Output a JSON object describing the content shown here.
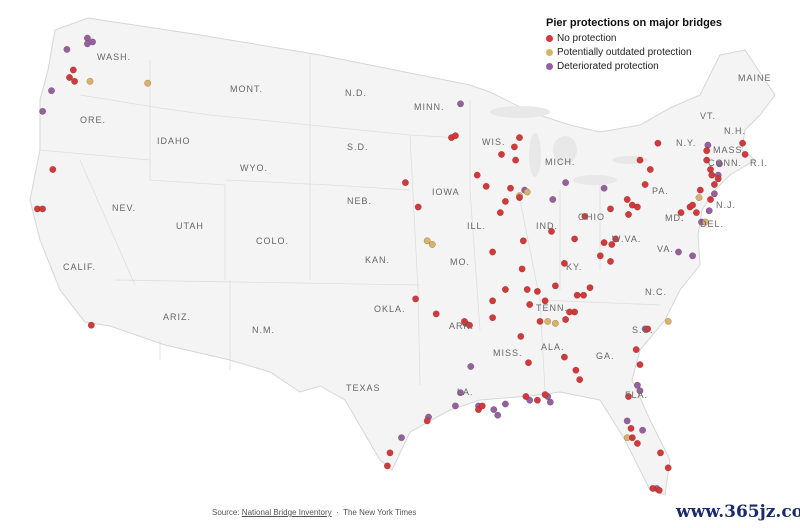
{
  "legend": {
    "title": "Pier protections on major bridges",
    "items": [
      {
        "key": "none",
        "label": "No protection",
        "color": "#d03a3a"
      },
      {
        "key": "outdated",
        "label": "Potentially outdated protection",
        "color": "#d7b26a"
      },
      {
        "key": "deteriorated",
        "label": "Deteriorated protection",
        "color": "#93629e"
      }
    ]
  },
  "states": [
    "WASH.",
    "MONT.",
    "N.D.",
    "MINN.",
    "MAINE",
    "ORE.",
    "IDAHO",
    "S.D.",
    "WIS.",
    "MICH.",
    "N.Y.",
    "VT.",
    "N.H.",
    "MASS.",
    "CONN.",
    "R.I.",
    "WYO.",
    "IOWA",
    "NEB.",
    "PA.",
    "NEV.",
    "UTAH",
    "COLO.",
    "ILL.",
    "IND.",
    "OHIO",
    "W.VA.",
    "MD.",
    "DEL.",
    "N.J.",
    "CALIF.",
    "KAN.",
    "MO.",
    "KY.",
    "VA.",
    "N.C.",
    "OKLA.",
    "TENN.",
    "ARIZ.",
    "N.M.",
    "ARK.",
    "S.C.",
    "MISS.",
    "ALA.",
    "GA.",
    "TEXAS",
    "LA.",
    "FLA."
  ],
  "source": {
    "prefix": "Source: ",
    "link": "National Bridge Inventory",
    "separator": "·",
    "credit": "The New York Times"
  },
  "watermark": "www.365jz.com",
  "map_data": {
    "projection_note": "approximate lon/lat",
    "points": {
      "deteriorated": [
        [
          -120.3,
          49.1
        ],
        [
          -119.9,
          48.9
        ],
        [
          -120.3,
          48.8
        ],
        [
          -121.9,
          48.5
        ],
        [
          -123.1,
          46.3
        ],
        [
          -123.8,
          45.2
        ],
        [
          -91.2,
          45.6
        ],
        [
          -80.0,
          41.1
        ],
        [
          -83.0,
          41.4
        ],
        [
          -84.0,
          40.5
        ],
        [
          -86.2,
          41.0
        ],
        [
          -71.9,
          43.4
        ],
        [
          -71.0,
          42.4
        ],
        [
          -71.1,
          41.8
        ],
        [
          -71.4,
          40.8
        ],
        [
          -71.8,
          39.9
        ],
        [
          -72.4,
          39.3
        ],
        [
          -73.1,
          37.5
        ],
        [
          -74.2,
          37.7
        ],
        [
          -90.4,
          31.6
        ],
        [
          -91.2,
          30.2
        ],
        [
          -76.8,
          33.6
        ],
        [
          -77.4,
          30.6
        ],
        [
          -77.2,
          30.3
        ],
        [
          -78.2,
          28.7
        ],
        [
          -77.0,
          28.2
        ],
        [
          -75.9,
          25.1
        ],
        [
          -93.7,
          28.9
        ],
        [
          -91.6,
          29.5
        ],
        [
          -89.8,
          29.5
        ],
        [
          -88.6,
          29.3
        ],
        [
          -88.3,
          29.0
        ],
        [
          -87.7,
          29.6
        ],
        [
          -85.8,
          29.8
        ],
        [
          -84.4,
          30.0
        ],
        [
          -84.2,
          29.7
        ],
        [
          -95.8,
          27.8
        ]
      ],
      "outdated": [
        [
          -120.1,
          46.8
        ],
        [
          -115.6,
          46.7
        ],
        [
          -86.6,
          40.7
        ],
        [
          -86.0,
          40.9
        ],
        [
          -93.8,
          38.3
        ],
        [
          -93.4,
          38.1
        ],
        [
          -72.6,
          40.6
        ],
        [
          -72.1,
          39.3
        ],
        [
          -84.4,
          34.0
        ],
        [
          -83.8,
          33.9
        ],
        [
          -75.0,
          34.0
        ],
        [
          -78.2,
          27.8
        ]
      ],
      "none": [
        [
          -121.4,
          47.4
        ],
        [
          -121.3,
          46.8
        ],
        [
          -121.7,
          47.0
        ],
        [
          -123.0,
          42.1
        ],
        [
          -124.2,
          40.0
        ],
        [
          -123.8,
          40.0
        ],
        [
          -120.0,
          33.8
        ],
        [
          -91.9,
          43.8
        ],
        [
          -91.6,
          43.9
        ],
        [
          -86.6,
          43.8
        ],
        [
          -87.0,
          43.3
        ],
        [
          -86.9,
          42.6
        ],
        [
          -88.0,
          42.9
        ],
        [
          -89.2,
          41.2
        ],
        [
          -89.9,
          41.8
        ],
        [
          -88.1,
          39.8
        ],
        [
          -87.3,
          41.1
        ],
        [
          -86.6,
          40.6
        ],
        [
          -87.7,
          40.4
        ],
        [
          -95.5,
          41.4
        ],
        [
          -94.5,
          40.1
        ],
        [
          -88.7,
          37.7
        ],
        [
          -86.3,
          38.3
        ],
        [
          -84.1,
          38.8
        ],
        [
          -82.3,
          38.4
        ],
        [
          -83.1,
          37.1
        ],
        [
          -86.4,
          36.8
        ],
        [
          -86.0,
          35.7
        ],
        [
          -85.2,
          35.6
        ],
        [
          -84.6,
          35.1
        ],
        [
          -85.8,
          34.9
        ],
        [
          -83.8,
          35.9
        ],
        [
          -82.1,
          35.4
        ],
        [
          -81.6,
          35.4
        ],
        [
          -81.1,
          35.8
        ],
        [
          -80.0,
          38.2
        ],
        [
          -79.4,
          38.1
        ],
        [
          -79.1,
          38.4
        ],
        [
          -78.2,
          40.5
        ],
        [
          -77.8,
          40.2
        ],
        [
          -78.1,
          39.7
        ],
        [
          -79.5,
          40.0
        ],
        [
          -81.5,
          39.6
        ],
        [
          -80.3,
          37.5
        ],
        [
          -79.5,
          37.2
        ],
        [
          -77.2,
          42.6
        ],
        [
          -75.8,
          43.5
        ],
        [
          -76.8,
          41.3
        ],
        [
          -77.4,
          40.1
        ],
        [
          -76.4,
          42.1
        ],
        [
          -72.0,
          43.1
        ],
        [
          -72.0,
          42.6
        ],
        [
          -71.7,
          42.1
        ],
        [
          -71.6,
          41.8
        ],
        [
          -71.4,
          41.3
        ],
        [
          -71.1,
          41.6
        ],
        [
          -69.2,
          43.5
        ],
        [
          -69.0,
          42.9
        ],
        [
          -72.8,
          39.8
        ],
        [
          -73.3,
          40.1
        ],
        [
          -74.0,
          39.8
        ],
        [
          -73.1,
          40.2
        ],
        [
          -71.7,
          40.5
        ],
        [
          -72.5,
          41.0
        ],
        [
          -82.3,
          34.5
        ],
        [
          -82.7,
          34.5
        ],
        [
          -83.0,
          34.1
        ],
        [
          -85.0,
          34.0
        ],
        [
          -86.5,
          33.2
        ],
        [
          -85.9,
          31.8
        ],
        [
          -86.1,
          30.0
        ],
        [
          -85.2,
          29.8
        ],
        [
          -84.6,
          30.1
        ],
        [
          -83.1,
          32.1
        ],
        [
          -82.2,
          31.4
        ],
        [
          -81.9,
          30.9
        ],
        [
          -94.7,
          35.2
        ],
        [
          -93.1,
          34.4
        ],
        [
          -90.8,
          33.9
        ],
        [
          -90.5,
          33.8
        ],
        [
          -90.9,
          34.0
        ],
        [
          -88.7,
          34.2
        ],
        [
          -88.7,
          35.1
        ],
        [
          -87.7,
          35.7
        ],
        [
          -76.6,
          33.6
        ],
        [
          -77.5,
          32.5
        ],
        [
          -77.2,
          31.7
        ],
        [
          -78.1,
          30.0
        ],
        [
          -77.9,
          28.3
        ],
        [
          -77.8,
          27.8
        ],
        [
          -77.4,
          27.5
        ],
        [
          -75.6,
          27.0
        ],
        [
          -75.0,
          26.2
        ],
        [
          -75.7,
          25.0
        ],
        [
          -76.2,
          25.1
        ],
        [
          -96.7,
          27.0
        ],
        [
          -96.9,
          26.3
        ],
        [
          -93.8,
          28.7
        ],
        [
          -89.8,
          29.3
        ],
        [
          -89.5,
          29.5
        ]
      ]
    }
  }
}
